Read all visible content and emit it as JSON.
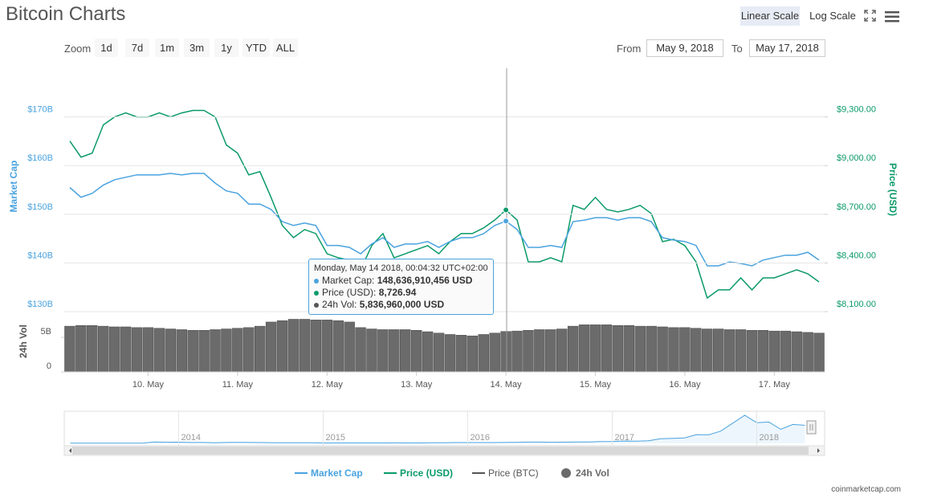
{
  "header": {
    "title": "Bitcoin Charts",
    "scale_buttons": [
      "Linear Scale",
      "Log Scale"
    ]
  },
  "zoom": {
    "label": "Zoom",
    "buttons": [
      "1d",
      "7d",
      "1m",
      "3m",
      "1y",
      "YTD",
      "ALL"
    ]
  },
  "range": {
    "from_label": "From",
    "from": "May 9, 2018",
    "to_label": "To",
    "to": "May 17, 2018"
  },
  "tooltip": {
    "title": "Monday, May 14 2018, 00:04:32 UTC+02:00",
    "rows": [
      {
        "label": "Market Cap:",
        "value": "148,636,910,456 USD"
      },
      {
        "label": "Price (USD):",
        "value": "8,726.94"
      },
      {
        "label": "24h Vol:",
        "value": "5,836,960,000 USD"
      }
    ]
  },
  "chart_data": [
    {
      "type": "line",
      "y_label": "Market Cap",
      "y2_label": "Price (USD)",
      "log_scale": false,
      "grid": true,
      "categories": [
        null,
        null,
        null,
        null,
        null,
        null,
        null,
        "10. May",
        null,
        null,
        null,
        null,
        null,
        null,
        null,
        "11. May",
        null,
        null,
        null,
        null,
        null,
        null,
        null,
        "12. May",
        null,
        null,
        null,
        null,
        null,
        null,
        null,
        "13. May",
        null,
        null,
        null,
        null,
        null,
        null,
        null,
        "14. May",
        null,
        null,
        null,
        null,
        null,
        null,
        null,
        "15. May",
        null,
        null,
        null,
        null,
        null,
        null,
        null,
        "16. May",
        null,
        null,
        null,
        null,
        null,
        null,
        null,
        "17. May",
        null,
        null,
        null,
        null
      ],
      "ylim": [
        130,
        180
      ],
      "yticks": [
        {
          "value": 130,
          "label": "$130B"
        },
        {
          "value": 140,
          "label": "$140B"
        },
        {
          "value": 150,
          "label": "$150B"
        },
        {
          "value": 160,
          "label": "$160B"
        },
        {
          "value": 170,
          "label": "$170B"
        }
      ],
      "y2lim": [
        8100,
        9600
      ],
      "y2ticks": [
        {
          "value": 8100,
          "label": "$8,100.00"
        },
        {
          "value": 8400,
          "label": "$8,400.00"
        },
        {
          "value": 8700,
          "label": "$8,700.00"
        },
        {
          "value": 9000,
          "label": "$9,000.00"
        },
        {
          "value": 9300,
          "label": "$9,300.00"
        }
      ],
      "series": [
        {
          "name": "Market Cap",
          "color": "#4aa3df",
          "values": [
            155.5,
            153.5,
            154.3,
            156.0,
            157.1,
            157.6,
            158.1,
            158.1,
            158.1,
            158.4,
            158.1,
            158.4,
            158.4,
            156.4,
            154.8,
            154.3,
            152.1,
            152.1,
            151.0,
            148.5,
            147.7,
            148.2,
            147.7,
            143.6,
            143.6,
            143.2,
            141.9,
            143.9,
            145.2,
            143.2,
            143.9,
            143.9,
            144.4,
            143.2,
            144.4,
            145.2,
            145.2,
            146.0,
            147.7,
            148.6,
            146.9,
            143.2,
            143.2,
            143.6,
            143.2,
            148.5,
            148.8,
            149.3,
            149.3,
            148.8,
            149.3,
            149.3,
            148.5,
            145.2,
            144.7,
            144.4,
            143.6,
            139.4,
            139.4,
            140.2,
            139.9,
            139.4,
            140.6,
            141.1,
            141.6,
            141.6,
            142.2,
            140.6
          ]
        },
        {
          "name": "Price (USD)",
          "color": "#0b9a68",
          "axis": "y2",
          "values": [
            9151,
            9052,
            9077,
            9251,
            9300,
            9325,
            9300,
            9300,
            9325,
            9300,
            9325,
            9340,
            9340,
            9300,
            9127,
            9077,
            8943,
            8963,
            8804,
            8631,
            8556,
            8606,
            8581,
            8457,
            8432,
            8417,
            8358,
            8507,
            8581,
            8432,
            8457,
            8482,
            8507,
            8457,
            8531,
            8581,
            8581,
            8616,
            8665,
            8726.94,
            8665,
            8407,
            8407,
            8432,
            8407,
            8755,
            8730,
            8804,
            8730,
            8715,
            8730,
            8755,
            8705,
            8531,
            8546,
            8507,
            8407,
            8184,
            8234,
            8234,
            8308,
            8234,
            8308,
            8308,
            8333,
            8358,
            8333,
            8283
          ]
        },
        {
          "name": "Price (BTC)",
          "color": "#555555",
          "visible": false
        }
      ]
    },
    {
      "type": "bar",
      "y_label": "24h Vol",
      "ylim": [
        0,
        8.7
      ],
      "yticks": [
        0,
        {
          "value": 5,
          "label": "5B"
        }
      ],
      "series": [
        {
          "name": "24h Vol",
          "color": "#6b6b6b",
          "values": [
            6.6,
            6.7,
            6.7,
            6.6,
            6.5,
            6.5,
            6.4,
            6.4,
            6.3,
            6.2,
            6.1,
            6.0,
            6.0,
            6.1,
            6.2,
            6.3,
            6.4,
            6.6,
            7.2,
            7.4,
            7.6,
            7.6,
            7.5,
            7.5,
            7.4,
            7.2,
            6.4,
            6.2,
            6.1,
            6.1,
            6.1,
            6.0,
            5.8,
            5.6,
            5.4,
            5.3,
            5.2,
            5.4,
            5.6,
            5.84,
            5.9,
            6.0,
            6.1,
            6.1,
            6.2,
            6.6,
            6.8,
            6.8,
            6.8,
            6.7,
            6.7,
            6.6,
            6.6,
            6.5,
            6.4,
            6.4,
            6.3,
            6.2,
            6.2,
            6.1,
            6.1,
            6.0,
            6.0,
            5.9,
            5.9,
            5.8,
            5.7,
            5.6
          ]
        }
      ]
    },
    {
      "type": "area",
      "ylim": [
        0,
        250
      ],
      "categories": [
        null,
        null,
        null,
        null,
        null,
        null,
        null,
        null,
        null,
        "2014",
        null,
        null,
        null,
        null,
        null,
        null,
        null,
        null,
        null,
        null,
        null,
        "2015",
        null,
        null,
        null,
        null,
        null,
        null,
        null,
        null,
        null,
        null,
        null,
        "2016",
        null,
        null,
        null,
        null,
        null,
        null,
        null,
        null,
        null,
        null,
        null,
        "2017",
        null,
        null,
        null,
        null,
        null,
        null,
        null,
        null,
        null,
        null,
        null,
        "2018",
        null,
        null,
        null,
        null
      ],
      "series": [
        {
          "color": "#4aa3df",
          "values": [
            1.3,
            1.3,
            1.0,
            1.1,
            1.4,
            1.5,
            2.2,
            12,
            9,
            10,
            7,
            7,
            5.5,
            7,
            8,
            7.5,
            6.5,
            5,
            4.5,
            5,
            4.5,
            3.5,
            3.2,
            3.5,
            3.3,
            3.3,
            3.6,
            4.2,
            3.5,
            3.5,
            4.3,
            5.5,
            6.5,
            6.5,
            6.4,
            6.5,
            7,
            8.5,
            10.5,
            10.5,
            9.5,
            9.7,
            11,
            11.8,
            15,
            16,
            19,
            18,
            22,
            38,
            41,
            45,
            72,
            70,
            100,
            165,
            230,
            170,
            175,
            115,
            155,
            148
          ]
        }
      ]
    }
  ],
  "footer": "coinmarketcap.com"
}
